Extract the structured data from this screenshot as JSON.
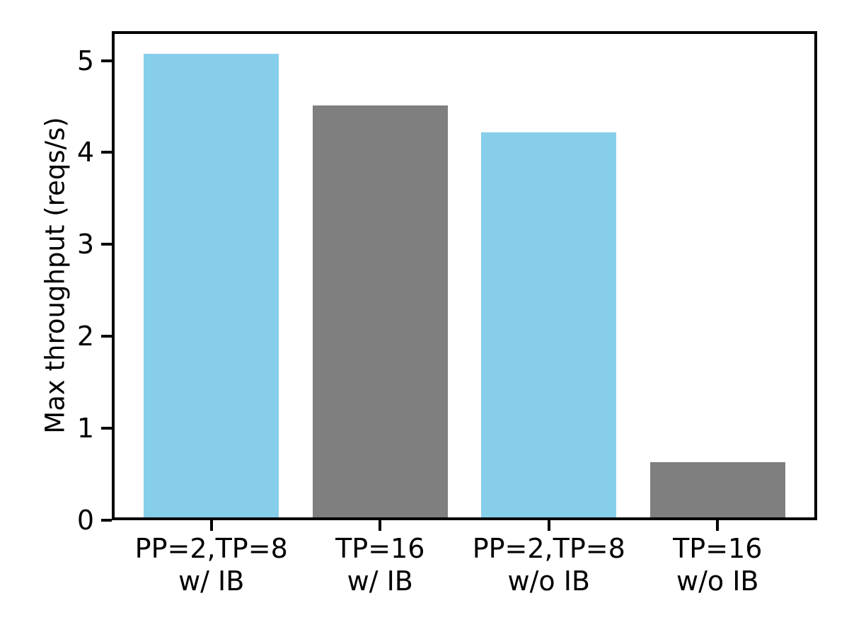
{
  "figure": {
    "background_color": "#ffffff",
    "text_color": "#000000",
    "spine_color": "#000000"
  },
  "chart_data": {
    "type": "bar",
    "title": "",
    "xlabel": "",
    "ylabel": "Max throughput (reqs/s)",
    "categories": [
      "PP=2,TP=8\nw/ IB",
      "TP=16\nw/ IB",
      "PP=2,TP=8\nw/o IB",
      "TP=16\nw/o IB"
    ],
    "values": [
      5.07,
      4.51,
      4.22,
      0.63
    ],
    "bar_colors": [
      "#87CEEB",
      "#7F7F7F",
      "#87CEEB",
      "#7F7F7F"
    ],
    "bar_width": 0.8,
    "yticks": [
      0,
      1,
      2,
      3,
      4,
      5
    ],
    "ylim": [
      0,
      5.32
    ],
    "xlim": [
      -0.59,
      3.59
    ],
    "grid": false,
    "legend": null
  }
}
